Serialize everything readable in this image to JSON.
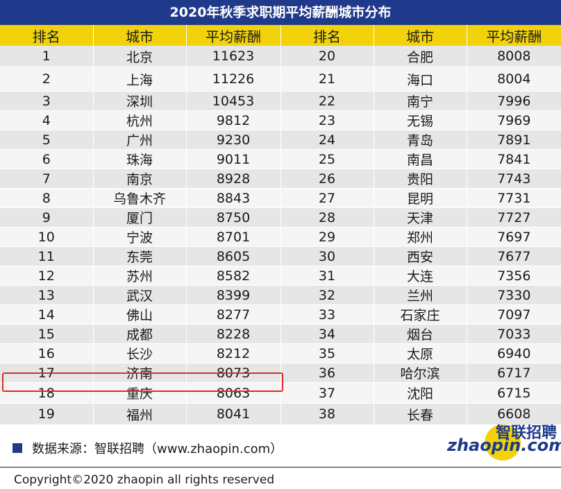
{
  "title": "2020年秋季求职期平均薪酬城市分布",
  "headers": [
    "排名",
    "城市",
    "平均薪酬",
    "排名",
    "城市",
    "平均薪酬"
  ],
  "rows": [
    [
      "1",
      "北京",
      "11623",
      "20",
      "合肥",
      "8008"
    ],
    [
      "2",
      "上海",
      "11226",
      "21",
      "海口",
      "8004"
    ],
    [
      "3",
      "深圳",
      "10453",
      "22",
      "南宁",
      "7996"
    ],
    [
      "4",
      "杭州",
      "9812",
      "23",
      "无锡",
      "7969"
    ],
    [
      "5",
      "广州",
      "9230",
      "24",
      "青岛",
      "7891"
    ],
    [
      "6",
      "珠海",
      "9011",
      "25",
      "南昌",
      "7841"
    ],
    [
      "7",
      "南京",
      "8928",
      "26",
      "贵阳",
      "7743"
    ],
    [
      "8",
      "乌鲁木齐",
      "8843",
      "27",
      "昆明",
      "7731"
    ],
    [
      "9",
      "厦门",
      "8750",
      "28",
      "天津",
      "7727"
    ],
    [
      "10",
      "宁波",
      "8701",
      "29",
      "郑州",
      "7697"
    ],
    [
      "11",
      "东莞",
      "8605",
      "30",
      "西安",
      "7677"
    ],
    [
      "12",
      "苏州",
      "8582",
      "31",
      "大连",
      "7356"
    ],
    [
      "13",
      "武汉",
      "8399",
      "32",
      "兰州",
      "7330"
    ],
    [
      "14",
      "佛山",
      "8277",
      "33",
      "石家庄",
      "7097"
    ],
    [
      "15",
      "成都",
      "8228",
      "34",
      "烟台",
      "7033"
    ],
    [
      "16",
      "长沙",
      "8212",
      "35",
      "太原",
      "6940"
    ],
    [
      "17",
      "济南",
      "8073",
      "36",
      "哈尔滨",
      "6717"
    ],
    [
      "18",
      "重庆",
      "8063",
      "37",
      "沈阳",
      "6715"
    ],
    [
      "19",
      "福州",
      "8041",
      "38",
      "长春",
      "6608"
    ]
  ],
  "source": "数据来源：智联招聘（www.zhaopin.com）",
  "logo": {
    "cn": "智联招聘",
    "en": "zhaopin.com"
  },
  "copyright": "Copyright©2020 zhaopin all rights reserved",
  "colors": {
    "title_bg": "#1f3a8a",
    "header_bg": "#f2d20a",
    "highlight": "#e0282a"
  }
}
